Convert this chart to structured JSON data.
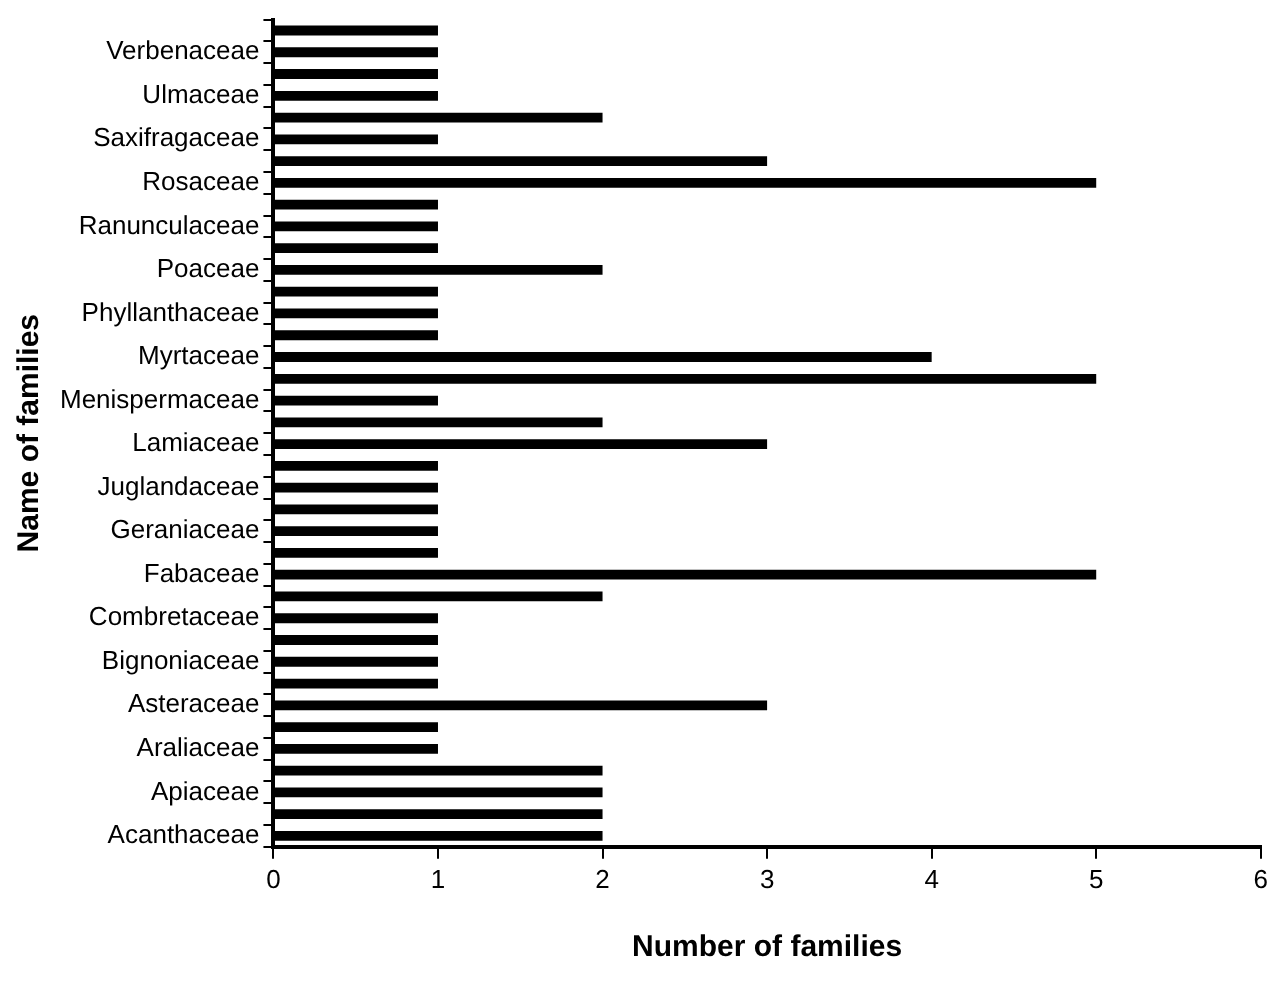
{
  "chart_data": {
    "type": "bar",
    "orientation": "horizontal",
    "xlabel": "Number of families",
    "ylabel": "Name of families",
    "categories": [
      null,
      "Verbenaceae",
      null,
      "Ulmaceae",
      null,
      "Saxifragaceae",
      null,
      "Rosaceae",
      null,
      "Ranunculaceae",
      null,
      "Poaceae",
      null,
      "Phyllanthaceae",
      null,
      "Myrtaceae",
      null,
      "Menispermaceae",
      null,
      "Lamiaceae",
      null,
      "Juglandaceae",
      null,
      "Geraniaceae",
      null,
      "Fabaceae",
      null,
      "Combretaceae",
      null,
      "Bignoniaceae",
      null,
      "Asteraceae",
      null,
      "Araliaceae",
      null,
      "Apiaceae",
      null,
      "Acanthaceae"
    ],
    "values": [
      1,
      1,
      1,
      1,
      2,
      1,
      3,
      5,
      1,
      1,
      1,
      2,
      1,
      1,
      1,
      4,
      5,
      1,
      2,
      3,
      1,
      1,
      1,
      1,
      1,
      5,
      2,
      1,
      1,
      1,
      1,
      3,
      1,
      1,
      2,
      2,
      2,
      2
    ],
    "color": "#000000",
    "xlim": [
      0,
      6
    ],
    "xticks": [
      0,
      1,
      2,
      3,
      4,
      5,
      6
    ],
    "grid": false,
    "legend": false
  }
}
